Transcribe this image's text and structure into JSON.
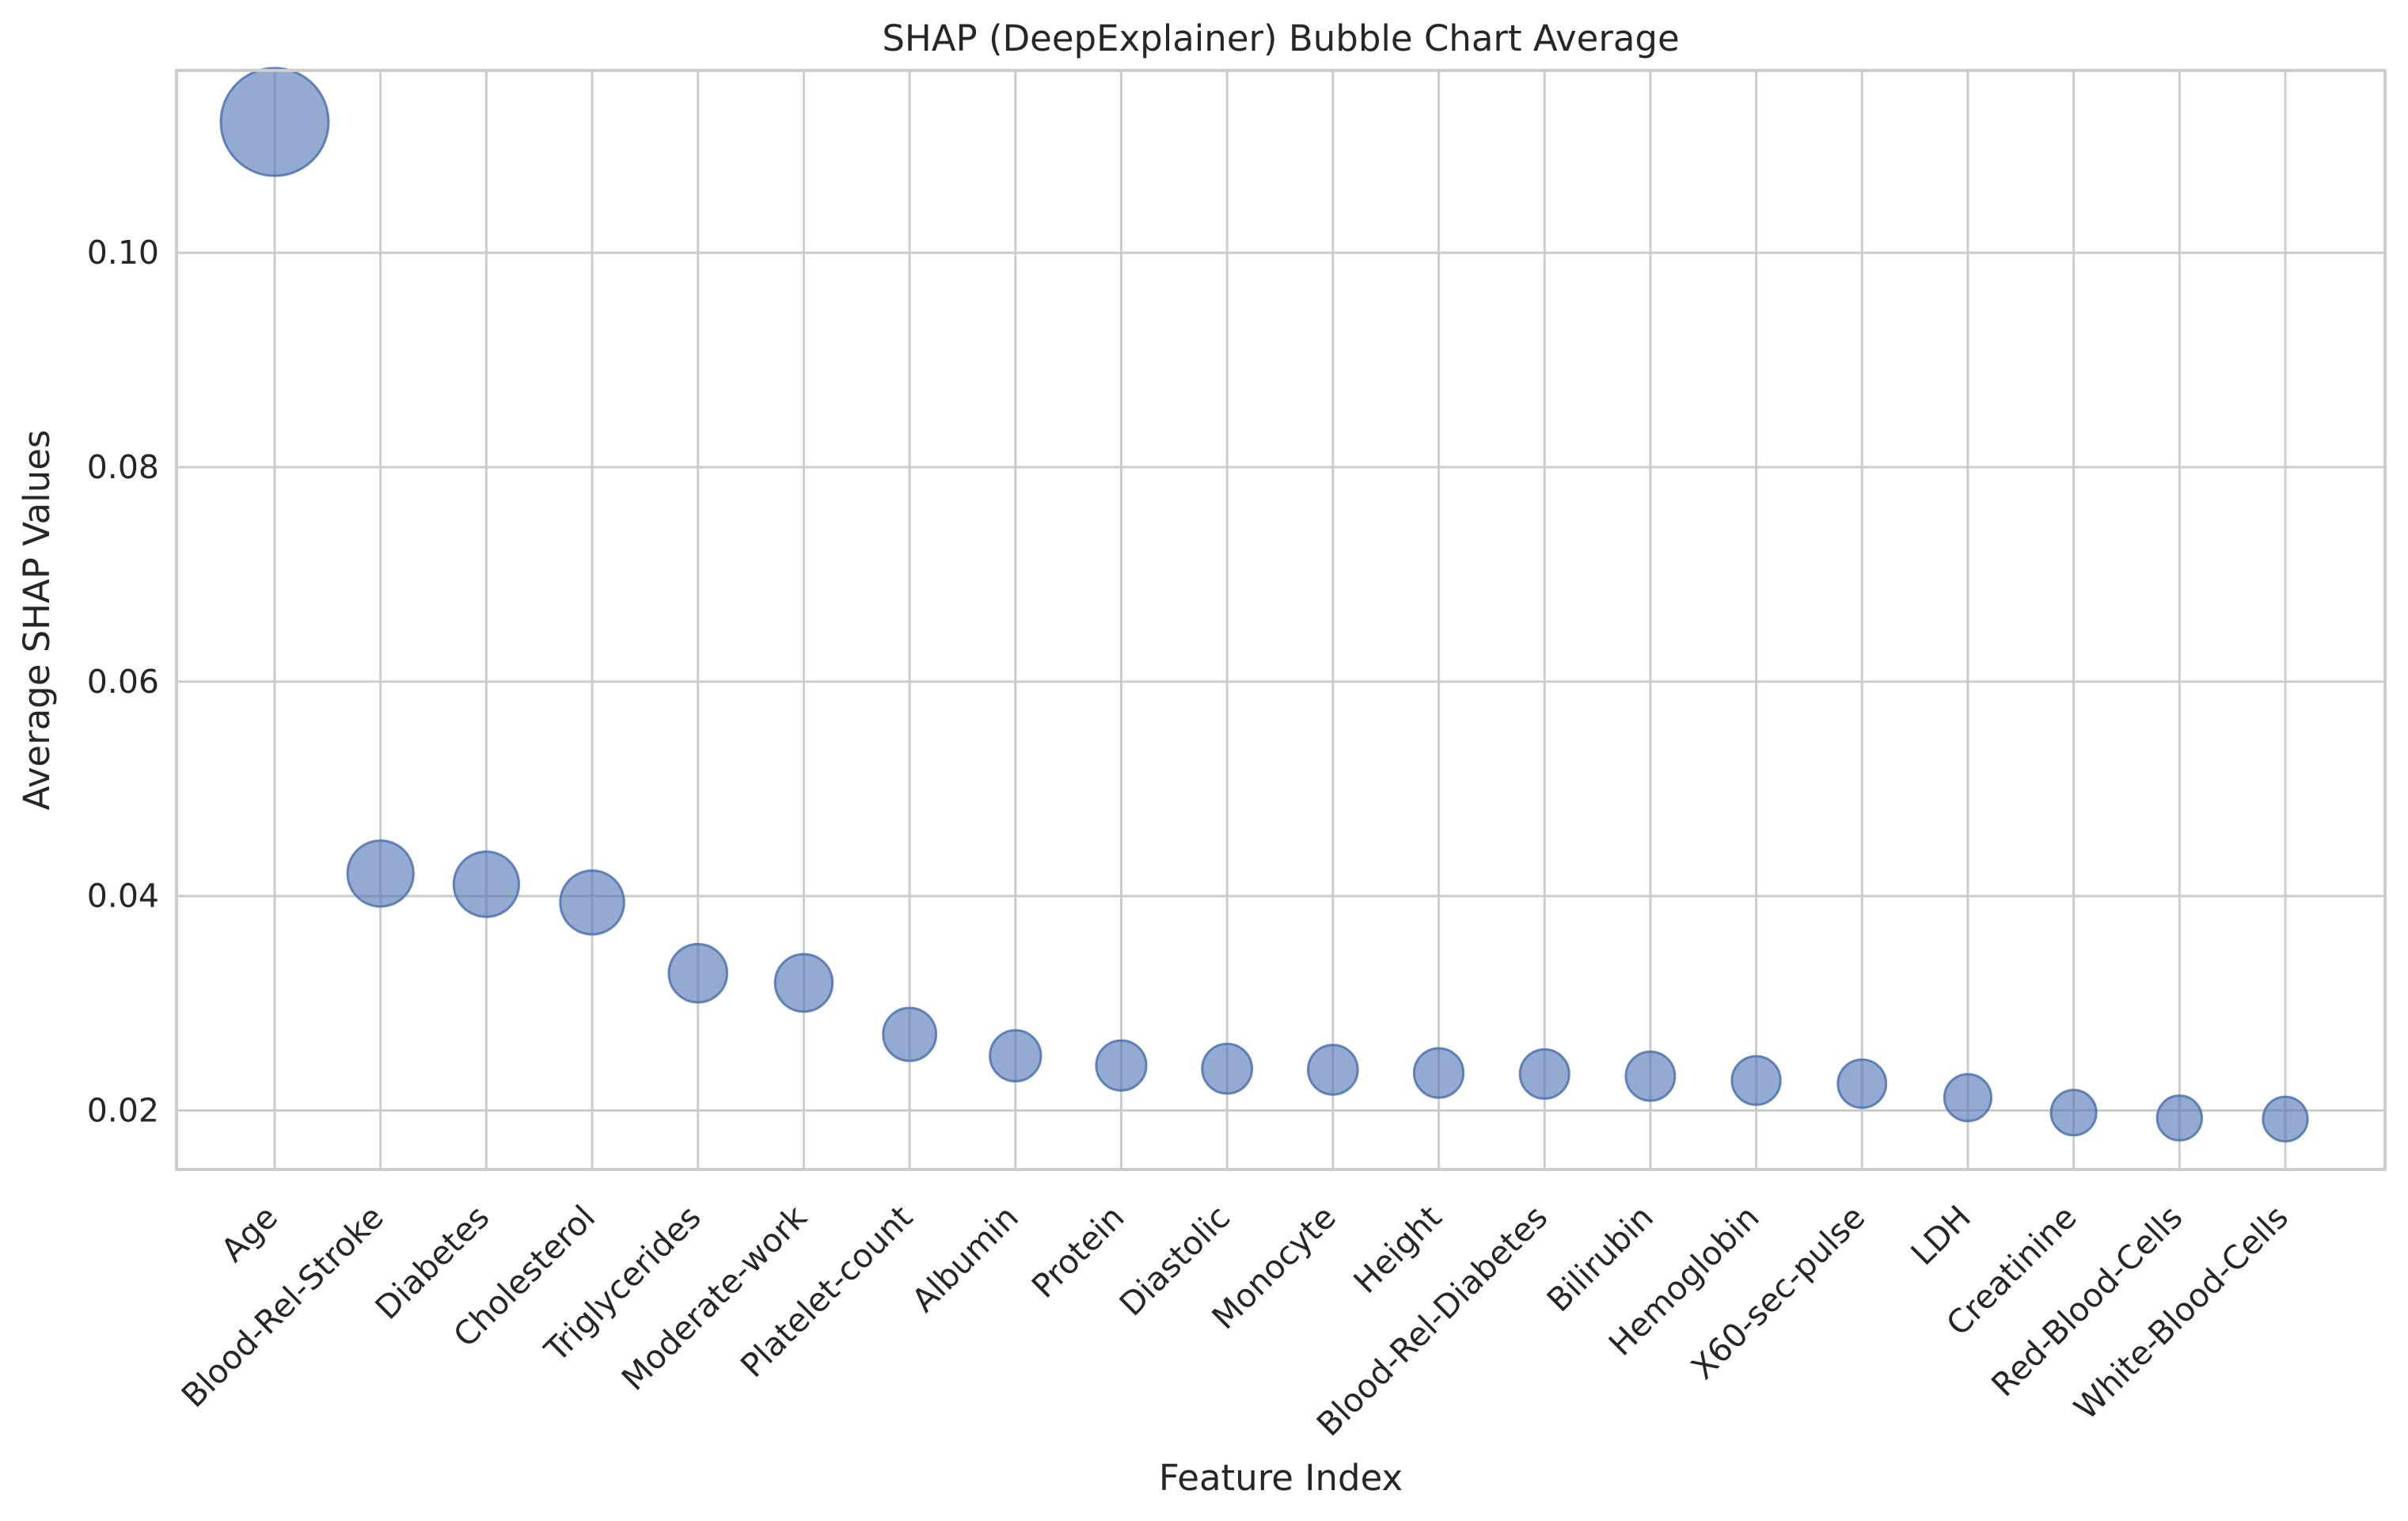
{
  "chart_data": {
    "type": "scatter",
    "title": "SHAP (DeepExplainer) Bubble Chart Average",
    "xlabel": "Feature Index",
    "ylabel": "Average SHAP Values",
    "categories": [
      "Age",
      "Blood-Rel-Stroke",
      "Diabetes",
      "Cholesterol",
      "Triglycerides",
      "Moderate-work",
      "Platelet-count",
      "Albumin",
      "Protein",
      "Diastolic",
      "Monocyte",
      "Height",
      "Blood-Rel-Diabetes",
      "Bilirubin",
      "Hemoglobin",
      "X60-sec-pulse",
      "LDH",
      "Creatinine",
      "Red-Blood-Cells",
      "White-Blood-Cells"
    ],
    "values": [
      0.1122,
      0.0421,
      0.0411,
      0.0394,
      0.0328,
      0.0319,
      0.0271,
      0.0251,
      0.0242,
      0.0239,
      0.0238,
      0.0235,
      0.0234,
      0.0232,
      0.0228,
      0.0225,
      0.0212,
      0.0198,
      0.0193,
      0.0192
    ],
    "yticks": [
      "0.02",
      "0.04",
      "0.06",
      "0.08",
      "0.10"
    ],
    "ylim": [
      0.0145,
      0.117
    ],
    "bubble_size": "proportional to value",
    "grid": true,
    "color": "#4c72b0",
    "opacity": 0.6
  }
}
